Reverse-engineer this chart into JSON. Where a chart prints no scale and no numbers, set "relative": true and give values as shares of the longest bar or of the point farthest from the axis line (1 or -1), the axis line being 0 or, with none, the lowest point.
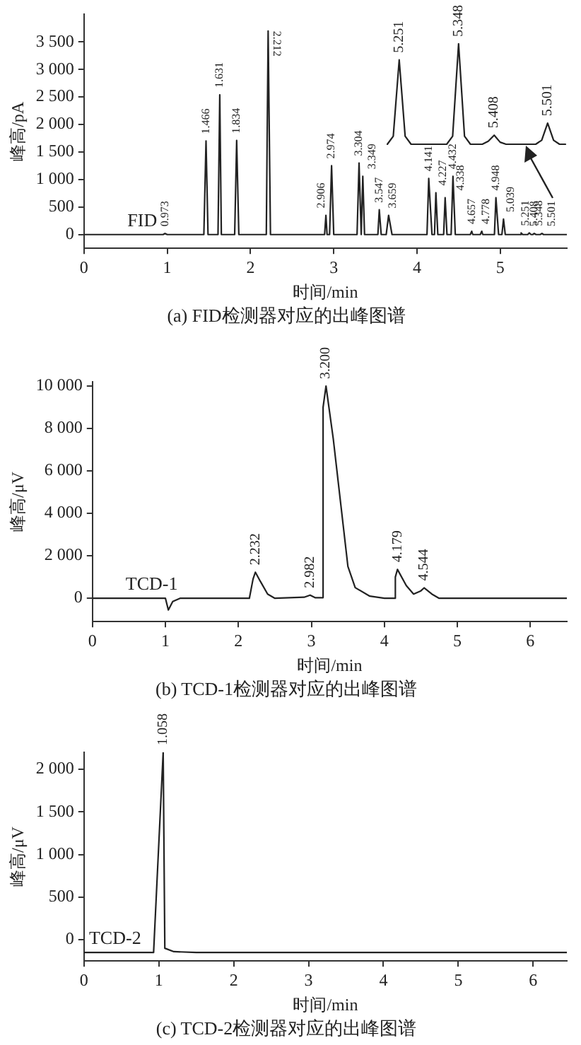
{
  "chart_data": [
    {
      "type": "line",
      "title": "(a) FID检测器对应的出峰图谱",
      "xlabel": "时间/min",
      "ylabel": "峰高/pA",
      "xlim": [
        0,
        5.8
      ],
      "xticks": [
        0,
        1,
        2,
        3,
        4,
        5
      ],
      "ylim": [
        -250,
        4000
      ],
      "yticks": [
        {
          "value": 0,
          "label": "0"
        },
        {
          "value": 500,
          "label": "500"
        },
        {
          "value": 1000,
          "label": "1 000"
        },
        {
          "value": 1500,
          "label": "1 500"
        },
        {
          "value": 2000,
          "label": "2 000"
        },
        {
          "value": 2500,
          "label": "2 500"
        },
        {
          "value": 3000,
          "label": "3 000"
        },
        {
          "value": 3500,
          "label": "3 500"
        }
      ],
      "series": [
        {
          "name": "FID",
          "color": "#222222",
          "x": [
            0,
            0.95,
            0.973,
            1.0,
            1.44,
            1.466,
            1.49,
            1.61,
            1.631,
            1.65,
            1.81,
            1.834,
            1.86,
            2.19,
            2.212,
            2.24,
            2.89,
            2.906,
            2.92,
            2.95,
            2.974,
            3.0,
            3.28,
            3.304,
            3.33,
            3.349,
            3.37,
            3.53,
            3.547,
            3.57,
            3.63,
            3.659,
            3.7,
            4.12,
            4.141,
            4.18,
            4.21,
            4.227,
            4.25,
            4.32,
            4.338,
            4.36,
            4.41,
            4.432,
            4.46,
            4.64,
            4.657,
            4.67,
            4.76,
            4.778,
            4.79,
            4.93,
            4.948,
            4.98,
            5.02,
            5.039,
            5.06,
            5.24,
            5.251,
            5.27,
            5.33,
            5.348,
            5.37,
            5.39,
            5.408,
            5.43,
            5.48,
            5.501,
            5.52,
            5.8
          ],
          "values": [
            0,
            0,
            20,
            0,
            0,
            1700,
            0,
            0,
            2540,
            0,
            0,
            1710,
            0,
            0,
            3700,
            0,
            0,
            350,
            0,
            0,
            1250,
            0,
            0,
            1300,
            0,
            1060,
            0,
            0,
            450,
            0,
            0,
            350,
            0,
            0,
            1020,
            0,
            0,
            760,
            0,
            0,
            670,
            0,
            0,
            1060,
            0,
            0,
            60,
            0,
            0,
            60,
            0,
            0,
            670,
            0,
            0,
            280,
            0,
            0,
            30,
            0,
            0,
            30,
            0,
            0,
            20,
            0,
            0,
            20,
            0,
            0
          ]
        }
      ],
      "annotations": [
        {
          "text": "0.973",
          "x": 0.973,
          "y": 20
        },
        {
          "text": "1.466",
          "x": 1.466,
          "y": 1700
        },
        {
          "text": "1.631",
          "x": 1.631,
          "y": 2540
        },
        {
          "text": "1.834",
          "x": 1.834,
          "y": 1710
        },
        {
          "text": "2.212",
          "x": 2.212,
          "y": 3700
        },
        {
          "text": "2.906",
          "x": 2.906,
          "y": 350
        },
        {
          "text": "2.974",
          "x": 2.974,
          "y": 1250
        },
        {
          "text": "3.304",
          "x": 3.304,
          "y": 1300
        },
        {
          "text": "3.349",
          "x": 3.349,
          "y": 1060
        },
        {
          "text": "3.547",
          "x": 3.547,
          "y": 450
        },
        {
          "text": "3.659",
          "x": 3.659,
          "y": 350
        },
        {
          "text": "4.141",
          "x": 4.141,
          "y": 1020
        },
        {
          "text": "4.227",
          "x": 4.227,
          "y": 760
        },
        {
          "text": "4.338",
          "x": 4.338,
          "y": 670
        },
        {
          "text": "4.432",
          "x": 4.432,
          "y": 1060
        },
        {
          "text": "4.657",
          "x": 4.657,
          "y": 60
        },
        {
          "text": "4.778",
          "x": 4.778,
          "y": 60
        },
        {
          "text": "4.948",
          "x": 4.948,
          "y": 670
        },
        {
          "text": "5.039",
          "x": 5.039,
          "y": 280
        },
        {
          "text": "5.251",
          "x": 5.251,
          "y": 30
        },
        {
          "text": "5.348",
          "x": 5.348,
          "y": 30
        },
        {
          "text": "5.408",
          "x": 5.408,
          "y": 20
        },
        {
          "text": "5.501",
          "x": 5.501,
          "y": 20
        }
      ]
    },
    {
      "type": "line",
      "relative": true,
      "tick_labels": false,
      "categories": [
        null,
        null,
        null,
        null,
        null,
        null,
        null,
        null,
        null,
        null,
        null,
        null,
        null,
        null,
        null,
        null,
        null,
        null,
        null,
        null,
        null,
        null,
        null,
        null,
        null,
        null,
        null,
        null,
        null,
        null,
        null
      ],
      "series": [
        {
          "color": "#222222",
          "values": [
            0,
            0.08,
            0.84,
            0.08,
            0,
            0,
            0,
            0,
            0,
            0,
            0,
            0.08,
            1,
            0.08,
            0,
            0,
            0,
            0.03,
            0.09,
            0.02,
            0,
            0,
            0,
            0,
            0,
            0,
            0.04,
            0.21,
            0.04,
            0,
            0
          ]
        }
      ],
      "annotations": [
        {
          "text": "5.251",
          "y": 0.84
        },
        {
          "text": "5.348",
          "y": 1
        },
        {
          "text": "5.408",
          "y": 0.09
        },
        {
          "text": "5.501",
          "y": 0.21
        }
      ]
    },
    {
      "type": "line",
      "title": "(b) TCD-1检测器对应的出峰图谱",
      "xlabel": "时间/min",
      "ylabel": "峰高/μV",
      "xlim": [
        0,
        6.5
      ],
      "xticks": [
        0,
        1,
        2,
        3,
        4,
        5,
        6
      ],
      "ylim": [
        -1100,
        10200
      ],
      "yticks": [
        {
          "value": 0,
          "label": "0"
        },
        {
          "value": 2000,
          "label": "2 000"
        },
        {
          "value": 4000,
          "label": "4 000"
        },
        {
          "value": 6000,
          "label": "6 000"
        },
        {
          "value": 8000,
          "label": "8 000"
        },
        {
          "value": 10000,
          "label": "10 000"
        }
      ],
      "series": [
        {
          "name": "TCD-1",
          "color": "#222222",
          "x": [
            0,
            1.0,
            1.04,
            1.1,
            1.2,
            2.15,
            2.2,
            2.232,
            2.3,
            2.4,
            2.5,
            2.9,
            2.982,
            3.05,
            3.15,
            3.16,
            3.2,
            3.3,
            3.4,
            3.5,
            3.6,
            3.8,
            4.0,
            4.14,
            4.15,
            4.179,
            4.3,
            4.4,
            4.5,
            4.544,
            4.65,
            4.75,
            6.5
          ],
          "values": [
            0,
            0,
            -550,
            -150,
            0,
            0,
            900,
            1230,
            800,
            200,
            0,
            50,
            150,
            30,
            30,
            9000,
            10000,
            7500,
            4500,
            1500,
            500,
            100,
            0,
            0,
            1000,
            1360,
            600,
            200,
            350,
            490,
            200,
            0,
            0
          ]
        }
      ],
      "annotations": [
        {
          "text": "2.232",
          "x": 2.232,
          "y": 1230
        },
        {
          "text": "2.982",
          "x": 2.982,
          "y": 150
        },
        {
          "text": "3.200",
          "x": 3.2,
          "y": 10000
        },
        {
          "text": "4.179",
          "x": 4.179,
          "y": 1360
        },
        {
          "text": "4.544",
          "x": 4.544,
          "y": 490
        }
      ]
    },
    {
      "type": "line",
      "title": "(c) TCD-2检测器对应的出峰图谱",
      "xlabel": "时间/min",
      "ylabel": "峰高/μV",
      "xlim": [
        0,
        6.45
      ],
      "xticks": [
        0,
        1,
        2,
        3,
        4,
        5,
        6
      ],
      "ylim": [
        -250,
        2200
      ],
      "yticks": [
        {
          "value": 0,
          "label": "0"
        },
        {
          "value": 500,
          "label": "500"
        },
        {
          "value": 1000,
          "label": "1 000"
        },
        {
          "value": 1500,
          "label": "1 500"
        },
        {
          "value": 2000,
          "label": "2 000"
        }
      ],
      "series": [
        {
          "name": "TCD-2",
          "color": "#222222",
          "x": [
            0,
            0.93,
            1.058,
            1.08,
            1.2,
            1.5,
            6.45
          ],
          "values": [
            -150,
            -150,
            2200,
            -100,
            -140,
            -150,
            -150
          ]
        }
      ],
      "annotations": [
        {
          "text": "1.058",
          "x": 1.058,
          "y": 2200
        }
      ]
    }
  ]
}
